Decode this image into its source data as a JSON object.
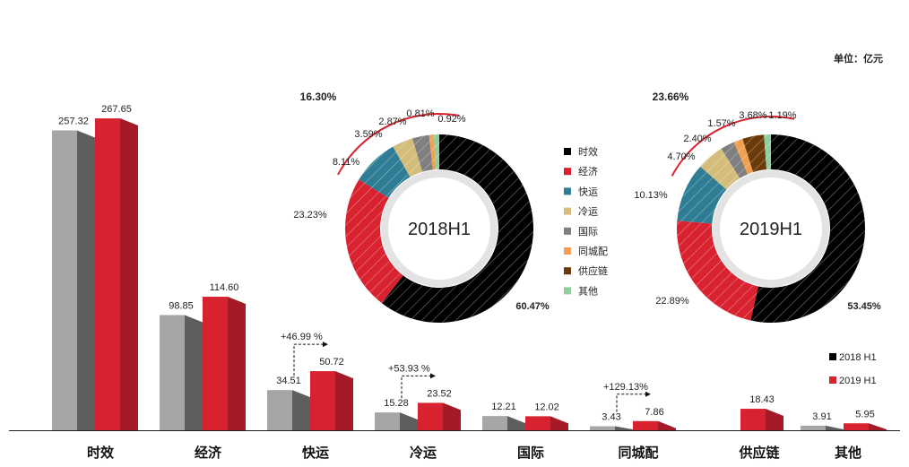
{
  "unit_label": "单位：亿元",
  "chart_data": [
    {
      "type": "bar",
      "categories": [
        "时效",
        "经济",
        "快运",
        "冷运",
        "国际",
        "同城配",
        "供应链",
        "其他"
      ],
      "series": [
        {
          "name": "2018 H1",
          "values": [
            257.32,
            98.85,
            34.51,
            15.28,
            12.21,
            3.43,
            null,
            3.91
          ],
          "labels": [
            "257.32",
            "98.85",
            "34.51",
            "15.28",
            "12.21",
            "3.43",
            "",
            "3.91"
          ],
          "colors": {
            "light": "#a6a6a6",
            "dark": "#5e5e5e"
          }
        },
        {
          "name": "2019 H1",
          "values": [
            267.65,
            114.6,
            50.72,
            23.52,
            12.02,
            7.86,
            18.43,
            5.95
          ],
          "labels": [
            "267.65",
            "114.60",
            "50.72",
            "23.52",
            "12.02",
            "7.86",
            "18.43",
            "5.95"
          ],
          "colors": {
            "light": "#d8222f",
            "dark": "#a51a27"
          }
        }
      ],
      "growth_annotations": [
        {
          "category": "快运",
          "text": "+46.99 %"
        },
        {
          "category": "冷运",
          "text": "+53.93 %"
        },
        {
          "category": "同城配",
          "text": "+129.13%"
        }
      ],
      "legend": [
        {
          "label": "2018 H1",
          "color": "#000000"
        },
        {
          "label": "2019 H1",
          "color": "#d8222f"
        }
      ],
      "ylim": [
        0,
        300
      ]
    },
    {
      "type": "pie",
      "variant": "donut",
      "center_label": "2018H1",
      "arc_label": "16.30%",
      "slices": [
        {
          "name": "时效",
          "value": 60.47,
          "label": "60.47%",
          "color": "#000000"
        },
        {
          "name": "经济",
          "value": 23.23,
          "label": "23.23%",
          "color": "#d8222f"
        },
        {
          "name": "快运",
          "value": 8.11,
          "label": "8.11%",
          "color": "#2e7d95"
        },
        {
          "name": "冷运",
          "value": 3.59,
          "label": "3.59%",
          "color": "#d4bd7a"
        },
        {
          "name": "国际",
          "value": 2.87,
          "label": "2.87%",
          "color": "#7f7f7f"
        },
        {
          "name": "同城配",
          "value": 0.81,
          "label": "0.81%",
          "color": "#f0a050"
        },
        {
          "name": "其他",
          "value": 0.92,
          "label": "0.92%",
          "color": "#8fcf9b"
        }
      ]
    },
    {
      "type": "pie",
      "variant": "donut",
      "center_label": "2019H1",
      "arc_label": "23.66%",
      "slices": [
        {
          "name": "时效",
          "value": 53.45,
          "label": "53.45%",
          "color": "#000000"
        },
        {
          "name": "经济",
          "value": 22.89,
          "label": "22.89%",
          "color": "#d8222f"
        },
        {
          "name": "快运",
          "value": 10.13,
          "label": "10.13%",
          "color": "#2e7d95"
        },
        {
          "name": "冷运",
          "value": 4.7,
          "label": "4.70%",
          "color": "#d4bd7a"
        },
        {
          "name": "国际",
          "value": 2.4,
          "label": "2.40%",
          "color": "#7f7f7f"
        },
        {
          "name": "同城配",
          "value": 1.57,
          "label": "1.57%",
          "color": "#f0a050"
        },
        {
          "name": "供应链",
          "value": 3.68,
          "label": "3.68%",
          "color": "#6b3a0a"
        },
        {
          "name": "其他",
          "value": 1.19,
          "label": "1.19%",
          "color": "#8fcf9b"
        }
      ]
    }
  ],
  "donut_legend": [
    {
      "label": "时效",
      "color": "#000000"
    },
    {
      "label": "经济",
      "color": "#d8222f"
    },
    {
      "label": "快运",
      "color": "#2e7d95"
    },
    {
      "label": "冷运",
      "color": "#d4bd7a"
    },
    {
      "label": "国际",
      "color": "#7f7f7f"
    },
    {
      "label": "同城配",
      "color": "#f0a050"
    },
    {
      "label": "供应链",
      "color": "#6b3a0a"
    },
    {
      "label": "其他",
      "color": "#8fcf9b"
    }
  ]
}
